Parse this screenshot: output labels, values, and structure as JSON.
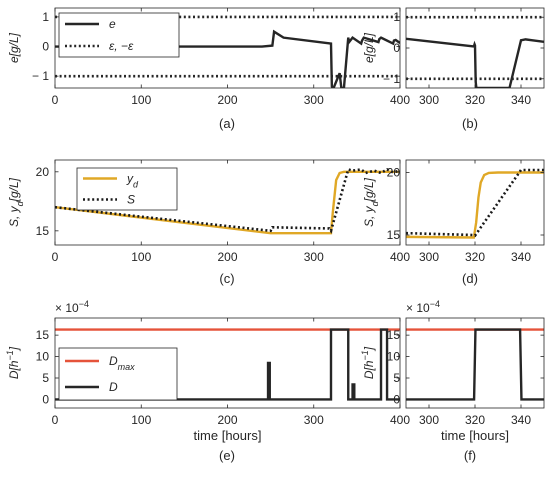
{
  "figure": {
    "colors": {
      "tracking_error": "#262626",
      "threshold": "#262626",
      "desired": "#e0a826",
      "substrate": "#1a1a1a",
      "dilution": "#262626",
      "dilution_max": "#e5533a"
    }
  },
  "chart_data": [
    {
      "id": "a",
      "type": "line",
      "caption": "(a)",
      "ylabel": "e[g/L]",
      "xlabel": "",
      "xlim": [
        0,
        400
      ],
      "ylim": [
        -1.4,
        1.3
      ],
      "xticks": [
        0,
        100,
        200,
        300,
        400
      ],
      "yticks": [
        -1,
        0,
        1
      ],
      "xtick_labels": [
        "0",
        "100",
        "200",
        "300",
        "400"
      ],
      "ytick_labels": [
        "− 1",
        "0",
        "1"
      ],
      "legend": {
        "position": "top-left",
        "entries": [
          "e",
          "ε, −ε"
        ]
      },
      "series": [
        {
          "name": "e",
          "style": "solid",
          "color": "#262626",
          "x": [
            0,
            240,
            252,
            254,
            265,
            320,
            321,
            322,
            323,
            330,
            332,
            333,
            335,
            340,
            341,
            345,
            355,
            356,
            358,
            375,
            376,
            378,
            392,
            393,
            395,
            400
          ],
          "y": [
            0,
            0,
            0.03,
            0.5,
            0.3,
            0.1,
            -1.35,
            -1.4,
            -1.4,
            -0.9,
            -1.4,
            -1.4,
            -1.4,
            0.3,
            0.15,
            0.3,
            0.1,
            0.2,
            0.3,
            0.15,
            0.25,
            0.3,
            0.1,
            0.2,
            0.22,
            0.12
          ]
        },
        {
          "name": "ε, −ε",
          "style": "dotted",
          "color": "#262626",
          "hlines": [
            1,
            -1
          ]
        }
      ]
    },
    {
      "id": "b",
      "type": "line",
      "caption": "(b)",
      "ylabel": "e[g/L]",
      "xlabel": "",
      "xlim": [
        290,
        350
      ],
      "ylim": [
        -1.3,
        1.3
      ],
      "xticks": [
        300,
        320,
        340
      ],
      "yticks": [
        -1,
        0,
        1
      ],
      "xtick_labels": [
        "300",
        "320",
        "340"
      ],
      "ytick_labels": [
        "− 1",
        "0",
        "1"
      ],
      "series": [
        {
          "name": "e",
          "style": "solid",
          "color": "#262626",
          "x": [
            290,
            319.5,
            319.8,
            320,
            320.3,
            320.6,
            335,
            340,
            342,
            345,
            350
          ],
          "y": [
            0.3,
            0.05,
            0.12,
            0.08,
            -1.1,
            -1.3,
            -1.3,
            0.25,
            0.28,
            0.25,
            0.2
          ]
        },
        {
          "name": "ε, −ε",
          "style": "dotted",
          "color": "#262626",
          "hlines": [
            1,
            -1
          ]
        }
      ]
    },
    {
      "id": "c",
      "type": "line",
      "caption": "(c)",
      "ylabel": "S, y_d[g/L]",
      "xlabel": "",
      "xlim": [
        0,
        400
      ],
      "ylim": [
        13.8,
        21
      ],
      "xticks": [
        0,
        100,
        200,
        300,
        400
      ],
      "yticks": [
        15,
        20
      ],
      "xtick_labels": [
        "0",
        "100",
        "200",
        "300",
        "400"
      ],
      "ytick_labels": [
        "15",
        "20"
      ],
      "legend": {
        "position": "top-left",
        "entries": [
          "y_d",
          "S"
        ]
      },
      "series": [
        {
          "name": "y_d",
          "style": "solid",
          "color": "#e0a826",
          "x": [
            0,
            250,
            320,
            322,
            326,
            330,
            335,
            400
          ],
          "y": [
            17,
            14.8,
            14.8,
            16.5,
            19.3,
            19.9,
            20,
            20
          ]
        },
        {
          "name": "S",
          "style": "dotted",
          "color": "#1a1a1a",
          "x": [
            0,
            250,
            252,
            318,
            320,
            340,
            345,
            355,
            360,
            370,
            378,
            385,
            392,
            400
          ],
          "y": [
            17,
            15,
            15.3,
            15.2,
            15.0,
            20.2,
            20.1,
            20.2,
            19.9,
            20.1,
            19.9,
            20.2,
            19.95,
            20.1
          ]
        }
      ]
    },
    {
      "id": "d",
      "type": "line",
      "caption": "(d)",
      "ylabel": "S, y_d[g/L]",
      "xlabel": "",
      "xlim": [
        290,
        350
      ],
      "ylim": [
        14.2,
        21
      ],
      "xticks": [
        300,
        320,
        340
      ],
      "yticks": [
        15,
        20
      ],
      "xtick_labels": [
        "300",
        "320",
        "340"
      ],
      "ytick_labels": [
        "15",
        "20"
      ],
      "series": [
        {
          "name": "y_d",
          "style": "solid",
          "color": "#e0a826",
          "x": [
            290,
            319.5,
            320.5,
            321.5,
            322.5,
            324,
            326,
            330,
            350
          ],
          "y": [
            14.85,
            14.8,
            16,
            18,
            19.2,
            19.8,
            19.97,
            20,
            20
          ]
        },
        {
          "name": "S",
          "style": "dotted",
          "color": "#1a1a1a",
          "x": [
            290,
            319,
            320,
            340,
            350
          ],
          "y": [
            15.15,
            15.0,
            14.95,
            20.2,
            20.2
          ]
        }
      ]
    },
    {
      "id": "e",
      "type": "line",
      "caption": "(e)",
      "ylabel": "D[h^-1]",
      "xlabel": "time [hours]",
      "multiplier": "× 10^−4",
      "xlim": [
        0,
        400
      ],
      "ylim": [
        -2,
        19
      ],
      "xticks": [
        0,
        100,
        200,
        300,
        400
      ],
      "yticks": [
        0,
        5,
        10,
        15
      ],
      "xtick_labels": [
        "0",
        "100",
        "200",
        "300",
        "400"
      ],
      "ytick_labels": [
        "0",
        "5",
        "10",
        "15"
      ],
      "legend": {
        "position": "middle-left",
        "entries": [
          "D_max",
          "D"
        ]
      },
      "series": [
        {
          "name": "D_max",
          "style": "solid",
          "color": "#e5533a",
          "x": [
            0,
            400
          ],
          "y": [
            16.3,
            16.3
          ]
        },
        {
          "name": "D",
          "style": "solid",
          "color": "#262626",
          "x": [
            0,
            247,
            247,
            249,
            249,
            320,
            320,
            340,
            340,
            345,
            345,
            347,
            347,
            378,
            378,
            385,
            385,
            400
          ],
          "y": [
            0,
            0,
            8.5,
            8.5,
            0,
            0,
            16.3,
            16.3,
            0,
            0,
            3.5,
            3.5,
            0,
            0,
            16.3,
            16.3,
            0,
            0
          ]
        }
      ]
    },
    {
      "id": "f",
      "type": "line",
      "caption": "(f)",
      "ylabel": "D[h^-1]",
      "xlabel": "time [hours]",
      "multiplier": "× 10^−4",
      "xlim": [
        290,
        350
      ],
      "ylim": [
        -2,
        19
      ],
      "xticks": [
        300,
        320,
        340
      ],
      "yticks": [
        0,
        5,
        10,
        15
      ],
      "xtick_labels": [
        "300",
        "320",
        "340"
      ],
      "ytick_labels": [
        "0",
        "5",
        "10",
        "15"
      ],
      "series": [
        {
          "name": "D_max",
          "style": "solid",
          "color": "#e5533a",
          "x": [
            290,
            350
          ],
          "y": [
            16.3,
            16.3
          ]
        },
        {
          "name": "D",
          "style": "solid",
          "color": "#262626",
          "x": [
            290,
            319.6,
            320.2,
            339.6,
            340.2,
            350
          ],
          "y": [
            0,
            0,
            16.3,
            16.3,
            0,
            0
          ]
        }
      ]
    }
  ]
}
